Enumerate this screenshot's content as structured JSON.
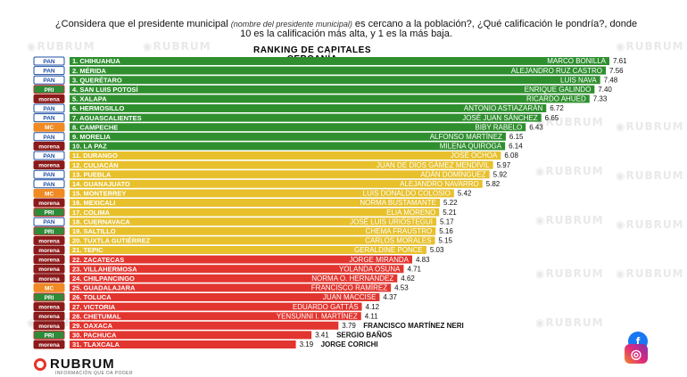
{
  "question": {
    "before": "¿Considera que el presidente municipal ",
    "italic": "(nombre del presidente municipal)",
    "after": " es cercano a la población?, ¿Qué calificación le pondría?, donde 10 es la calificación más alta, y 1 es la más baja."
  },
  "ranking_title": "RANKING DE CAPITALES",
  "ranking_subtitle": "CERCANÍA",
  "brand": "RUBRUM",
  "brand_tagline": "INFORMACIÓN QUE DA PODER",
  "social": {
    "facebook": "f",
    "instagram": "◎"
  },
  "colors": {
    "green": "#2f8f2f",
    "yellow": "#e7c02c",
    "red": "#e2352f",
    "watermark": "#e9e9e9"
  },
  "parties": {
    "PAN": {
      "label": "PAN",
      "bg": "#ffffff",
      "fg": "#1f4fa3",
      "border": "#1f4fa3"
    },
    "MORENA": {
      "label": "morena",
      "bg": "#8b1a1a",
      "fg": "#ffffff",
      "border": "#8b1a1a"
    },
    "PRI": {
      "label": "PRI",
      "bg": "#2e8b3a",
      "fg": "#ffffff",
      "border": "#d32f2f"
    },
    "MC": {
      "label": "MC",
      "bg": "#f08a24",
      "fg": "#ffffff",
      "border": "#f08a24"
    }
  },
  "chart_data": {
    "type": "bar",
    "orientation": "horizontal",
    "title": "RANKING DE CAPITALES",
    "subtitle": "CERCANÍA",
    "xlim": [
      0,
      7.61
    ],
    "rows": [
      {
        "rank_city": "1. CHIHUAHUA",
        "mayor": "MARCO BONILLA",
        "value": 7.61,
        "party": "PAN",
        "color": "green"
      },
      {
        "rank_city": "2. MÉRIDA",
        "mayor": "ALEJANDRO RUZ CASTRO",
        "value": 7.56,
        "party": "PAN",
        "color": "green"
      },
      {
        "rank_city": "3. QUERÉTARO",
        "mayor": "LUIS NAVA",
        "value": 7.48,
        "party": "PAN",
        "color": "green"
      },
      {
        "rank_city": "4. SAN LUIS POTOSÍ",
        "mayor": "ENRIQUE GALINDO",
        "value": 7.4,
        "party": "PRI",
        "color": "green"
      },
      {
        "rank_city": "5. XALAPA",
        "mayor": "RICARDO AHUED",
        "value": 7.33,
        "party": "MORENA",
        "color": "green"
      },
      {
        "rank_city": "6. HERMOSILLO",
        "mayor": "ANTONIO ASTIAZARÁN",
        "value": 6.72,
        "party": "PAN",
        "color": "green"
      },
      {
        "rank_city": "7. AGUASCALIENTES",
        "mayor": "JOSÉ JUAN SÁNCHEZ",
        "value": 6.65,
        "party": "PAN",
        "color": "green"
      },
      {
        "rank_city": "8. CAMPECHE",
        "mayor": "BIBY RABELO",
        "value": 6.43,
        "party": "MC",
        "color": "green"
      },
      {
        "rank_city": "9. MORELIA",
        "mayor": "ALFONSO MARTÍNEZ",
        "value": 6.15,
        "party": "PAN",
        "color": "green"
      },
      {
        "rank_city": "10. LA PAZ",
        "mayor": "MILENA QUIROGA",
        "value": 6.14,
        "party": "MORENA",
        "color": "green"
      },
      {
        "rank_city": "11. DURANGO",
        "mayor": "JOSÉ OCHOA",
        "value": 6.08,
        "party": "PAN",
        "color": "yellow"
      },
      {
        "rank_city": "12. CULIACÁN",
        "mayor": "JUAN DE DIOS GÁMEZ MENDÍVIL",
        "value": 5.97,
        "party": "MORENA",
        "color": "yellow"
      },
      {
        "rank_city": "13. PUEBLA",
        "mayor": "ADÁN DOMÍNGUEZ",
        "value": 5.92,
        "party": "PAN",
        "color": "yellow"
      },
      {
        "rank_city": "14. GUANAJUATO",
        "mayor": "ALEJANDRO NAVARRO",
        "value": 5.82,
        "party": "PAN",
        "color": "yellow"
      },
      {
        "rank_city": "15. MONTERREY",
        "mayor": "LUIS DONALDO COLOSIO",
        "value": 5.42,
        "party": "MC",
        "color": "yellow"
      },
      {
        "rank_city": "16. MEXICALI",
        "mayor": "NORMA BUSTAMANTE",
        "value": 5.22,
        "party": "MORENA",
        "color": "yellow"
      },
      {
        "rank_city": "17. COLIMA",
        "mayor": "ELIA MORENO",
        "value": 5.21,
        "party": "PRI",
        "color": "yellow"
      },
      {
        "rank_city": "18. CUERNAVACA",
        "mayor": "JOSÉ LUIS URIÓSTEGUI",
        "value": 5.17,
        "party": "PAN",
        "color": "yellow"
      },
      {
        "rank_city": "19. SALTILLO",
        "mayor": "CHEMA FRAUSTRO",
        "value": 5.16,
        "party": "PRI",
        "color": "yellow"
      },
      {
        "rank_city": "20. TUXTLA GUTIÉRREZ",
        "mayor": "CARLOS MORALES",
        "value": 5.15,
        "party": "MORENA",
        "color": "yellow"
      },
      {
        "rank_city": "21. TEPIC",
        "mayor": "GERALDINE PONCE",
        "value": 5.03,
        "party": "MORENA",
        "color": "yellow"
      },
      {
        "rank_city": "22. ZACATECAS",
        "mayor": "JORGE MIRANDA",
        "value": 4.83,
        "party": "MORENA",
        "color": "red"
      },
      {
        "rank_city": "23. VILLAHERMOSA",
        "mayor": "YOLANDA OSUNA",
        "value": 4.71,
        "party": "MORENA",
        "color": "red"
      },
      {
        "rank_city": "24. CHILPANCINGO",
        "mayor": "NORMA O. HERNÁNDEZ",
        "value": 4.62,
        "party": "MORENA",
        "color": "red"
      },
      {
        "rank_city": "25. GUADALAJARA",
        "mayor": "FRANCISCO RAMÍREZ",
        "value": 4.53,
        "party": "MC",
        "color": "red"
      },
      {
        "rank_city": "26. TOLUCA",
        "mayor": "JUAN MACCISE",
        "value": 4.37,
        "party": "PRI",
        "color": "red"
      },
      {
        "rank_city": "27. VICTORIA",
        "mayor": "EDUARDO GATTÁS",
        "value": 4.12,
        "party": "MORENA",
        "color": "red"
      },
      {
        "rank_city": "28. CHETUMAL",
        "mayor": "YENSUNNI I. MARTÍNEZ",
        "value": 4.11,
        "party": "MORENA",
        "color": "red"
      },
      {
        "rank_city": "29. OAXACA",
        "mayor": "FRANCISCO MARTÍNEZ NERI",
        "value": 3.79,
        "party": "MORENA",
        "color": "red"
      },
      {
        "rank_city": "30. PACHUCA",
        "mayor": "SERGIO BAÑOS",
        "value": 3.41,
        "party": "PRI",
        "color": "red"
      },
      {
        "rank_city": "31. TLAXCALA",
        "mayor": "JORGE CORICHI",
        "value": 3.19,
        "party": "MORENA",
        "color": "red"
      }
    ]
  }
}
